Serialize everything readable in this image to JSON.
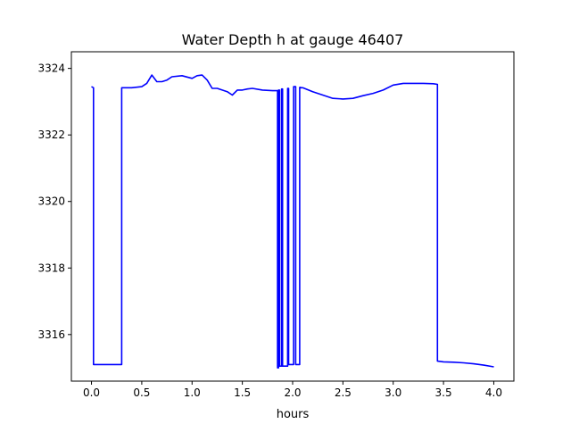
{
  "chart_data": {
    "type": "line",
    "title": "Water Depth h at gauge 46407",
    "xlabel": "hours",
    "ylabel": "",
    "xlim": [
      -0.2,
      4.2
    ],
    "ylim": [
      3314.6,
      3324.5
    ],
    "x_ticks": [
      0.0,
      0.5,
      1.0,
      1.5,
      2.0,
      2.5,
      3.0,
      3.5,
      4.0
    ],
    "x_tick_labels": [
      "0.0",
      "0.5",
      "1.0",
      "1.5",
      "2.0",
      "2.5",
      "3.0",
      "3.5",
      "4.0"
    ],
    "y_ticks": [
      3316,
      3318,
      3320,
      3322,
      3324
    ],
    "y_tick_labels": [
      "3316",
      "3318",
      "3320",
      "3322",
      "3324"
    ],
    "grid": false,
    "series": [
      {
        "color": "#0000ff",
        "x": [
          0.0,
          0.02,
          0.02,
          0.3,
          0.3,
          0.4,
          0.5,
          0.55,
          0.6,
          0.65,
          0.7,
          0.75,
          0.8,
          0.9,
          1.0,
          1.05,
          1.1,
          1.15,
          1.2,
          1.25,
          1.3,
          1.35,
          1.4,
          1.45,
          1.5,
          1.55,
          1.6,
          1.7,
          1.8,
          1.85,
          1.85,
          1.86,
          1.86,
          1.87,
          1.87,
          1.89,
          1.89,
          1.9,
          1.9,
          1.95,
          1.95,
          1.96,
          1.96,
          2.01,
          2.01,
          2.02,
          2.02,
          2.03,
          2.03,
          2.07,
          2.07,
          2.08,
          2.08,
          2.1,
          2.2,
          2.3,
          2.4,
          2.5,
          2.6,
          2.7,
          2.8,
          2.9,
          3.0,
          3.1,
          3.2,
          3.3,
          3.4,
          3.44,
          3.44,
          3.5,
          3.6,
          3.7,
          3.8,
          3.9,
          4.0
        ],
        "values": [
          3323.45,
          3323.42,
          3315.1,
          3315.1,
          3323.42,
          3323.42,
          3323.45,
          3323.55,
          3323.8,
          3323.6,
          3323.6,
          3323.65,
          3323.75,
          3323.78,
          3323.7,
          3323.78,
          3323.8,
          3323.65,
          3323.4,
          3323.4,
          3323.35,
          3323.3,
          3323.2,
          3323.35,
          3323.35,
          3323.38,
          3323.4,
          3323.35,
          3323.33,
          3323.33,
          3315.0,
          3315.0,
          3323.35,
          3323.35,
          3315.05,
          3315.05,
          3323.38,
          3323.38,
          3315.05,
          3315.05,
          3323.4,
          3323.4,
          3315.1,
          3315.1,
          3323.45,
          3323.45,
          3323.45,
          3323.45,
          3315.1,
          3315.1,
          3323.43,
          3323.43,
          3323.42,
          3323.42,
          3323.3,
          3323.2,
          3323.1,
          3323.08,
          3323.1,
          3323.18,
          3323.25,
          3323.35,
          3323.5,
          3323.55,
          3323.55,
          3323.55,
          3323.54,
          3323.52,
          3315.2,
          3315.18,
          3315.17,
          3315.15,
          3315.12,
          3315.08,
          3315.03
        ]
      }
    ]
  }
}
